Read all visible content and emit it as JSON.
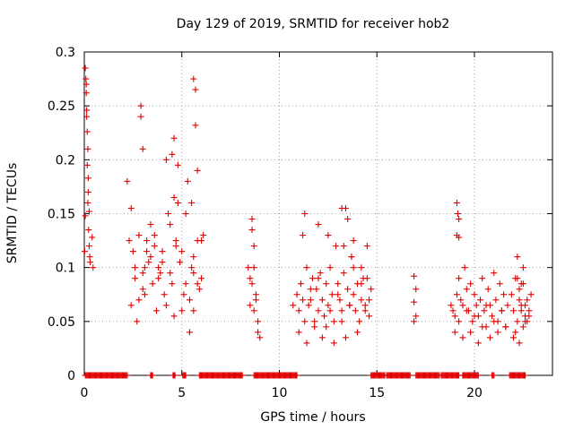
{
  "chart_data": {
    "type": "scatter",
    "title": "Day 129 of 2019, SRMTID for receiver hob2",
    "xlabel": "GPS time / hours",
    "ylabel": "SRMTID / TECUs",
    "xlim": [
      0,
      24
    ],
    "ylim": [
      0,
      0.3
    ],
    "xticks": [
      0,
      5,
      10,
      15,
      20
    ],
    "xtick_labels": [
      "0",
      "5",
      "10",
      "15",
      "20"
    ],
    "yticks": [
      0,
      0.05,
      0.1,
      0.15,
      0.2,
      0.25,
      0.3
    ],
    "ytick_labels": [
      "0",
      "0.05",
      "0.1",
      "0.15",
      "0.2",
      "0.25",
      "0.3"
    ],
    "grid": true,
    "marker": "+",
    "color": "#e00000",
    "series": [
      {
        "name": "hob2",
        "x": [
          0.02,
          0.05,
          0.08,
          0.1,
          0.12,
          0.15,
          0.18,
          0.2,
          0.22,
          0.25,
          0.28,
          0.3,
          0.05,
          0.1,
          0.15,
          0.2,
          0.25,
          0.12,
          0.18,
          0.4,
          0.45,
          2.2,
          2.3,
          2.4,
          2.5,
          2.6,
          2.7,
          2.8,
          2.9,
          3.0,
          3.1,
          3.2,
          3.3,
          3.4,
          3.5,
          3.6,
          3.7,
          3.8,
          3.9,
          4.0,
          4.1,
          4.2,
          4.3,
          4.4,
          4.5,
          4.6,
          4.7,
          4.8,
          4.9,
          5.0,
          5.1,
          5.2,
          5.3,
          5.4,
          5.5,
          5.6,
          5.7,
          5.8,
          5.9,
          6.0,
          6.1,
          2.4,
          2.6,
          2.8,
          3.0,
          3.2,
          3.4,
          3.6,
          3.8,
          4.0,
          4.2,
          4.4,
          4.6,
          4.8,
          5.0,
          5.2,
          5.4,
          5.6,
          5.8,
          6.0,
          2.9,
          3.0,
          3.1,
          4.5,
          4.6,
          4.7,
          5.6,
          5.7,
          5.8,
          5.5,
          5.6,
          8.4,
          8.5,
          8.6,
          8.7,
          8.8,
          8.9,
          8.5,
          8.6,
          8.7,
          8.6,
          8.7,
          8.8,
          8.9,
          9.0,
          10.7,
          10.9,
          11.0,
          11.1,
          11.2,
          11.3,
          11.4,
          11.5,
          11.6,
          11.7,
          11.8,
          11.9,
          12.0,
          12.1,
          12.2,
          12.3,
          12.4,
          12.5,
          12.6,
          12.7,
          12.8,
          12.9,
          13.0,
          13.1,
          13.2,
          13.3,
          13.4,
          13.5,
          13.6,
          13.7,
          13.8,
          13.9,
          14.0,
          14.1,
          14.2,
          14.3,
          14.4,
          14.5,
          14.6,
          14.7,
          11.0,
          11.2,
          11.4,
          11.6,
          11.8,
          12.0,
          12.2,
          12.4,
          12.6,
          12.8,
          13.0,
          13.2,
          13.4,
          13.6,
          13.8,
          14.0,
          14.2,
          14.4,
          14.6,
          11.3,
          12.0,
          12.5,
          13.2,
          13.3,
          13.5,
          13.7,
          13.8,
          14.2,
          14.5,
          16.9,
          17.0,
          16.9,
          17.0,
          16.9,
          18.8,
          18.9,
          19.0,
          19.1,
          19.2,
          19.3,
          19.4,
          19.5,
          19.6,
          19.7,
          19.8,
          19.9,
          20.0,
          20.1,
          20.2,
          20.3,
          20.4,
          20.5,
          20.6,
          20.7,
          20.8,
          20.9,
          21.0,
          21.1,
          21.2,
          21.3,
          21.4,
          21.5,
          21.6,
          21.7,
          19.0,
          19.2,
          19.4,
          19.6,
          19.8,
          20.0,
          20.2,
          20.4,
          20.6,
          20.8,
          21.0,
          21.2,
          21.4,
          21.6,
          19.1,
          19.15,
          19.2,
          19.1,
          19.2,
          21.9,
          22.0,
          22.1,
          22.2,
          22.3,
          22.4,
          22.5,
          22.6,
          22.7,
          22.8,
          22.9,
          22.0,
          22.1,
          22.2,
          22.3,
          22.4,
          22.5,
          22.6,
          22.7,
          22.8,
          22.2,
          22.3,
          22.4,
          22.5,
          22.6
        ],
        "y": [
          0.115,
          0.148,
          0.275,
          0.27,
          0.24,
          0.195,
          0.21,
          0.17,
          0.135,
          0.12,
          0.11,
          0.105,
          0.285,
          0.262,
          0.226,
          0.183,
          0.152,
          0.246,
          0.16,
          0.128,
          0.1,
          0.18,
          0.125,
          0.065,
          0.115,
          0.09,
          0.05,
          0.13,
          0.25,
          0.095,
          0.075,
          0.115,
          0.105,
          0.14,
          0.085,
          0.12,
          0.06,
          0.1,
          0.095,
          0.115,
          0.075,
          0.2,
          0.15,
          0.095,
          0.085,
          0.22,
          0.125,
          0.195,
          0.105,
          0.06,
          0.075,
          0.15,
          0.18,
          0.04,
          0.1,
          0.095,
          0.265,
          0.125,
          0.08,
          0.09,
          0.13,
          0.155,
          0.1,
          0.07,
          0.08,
          0.125,
          0.11,
          0.13,
          0.09,
          0.105,
          0.065,
          0.14,
          0.055,
          0.16,
          0.115,
          0.085,
          0.07,
          0.11,
          0.085,
          0.125,
          0.24,
          0.21,
          0.1,
          0.205,
          0.165,
          0.12,
          0.275,
          0.232,
          0.19,
          0.16,
          0.06,
          0.1,
          0.09,
          0.145,
          0.12,
          0.075,
          0.05,
          0.065,
          0.085,
          0.1,
          0.135,
          0.06,
          0.07,
          0.04,
          0.035,
          0.065,
          0.075,
          0.06,
          0.085,
          0.13,
          0.05,
          0.1,
          0.065,
          0.07,
          0.09,
          0.045,
          0.08,
          0.06,
          0.095,
          0.07,
          0.055,
          0.085,
          0.065,
          0.1,
          0.075,
          0.05,
          0.12,
          0.085,
          0.07,
          0.06,
          0.095,
          0.155,
          0.08,
          0.065,
          0.11,
          0.075,
          0.06,
          0.085,
          0.05,
          0.07,
          0.09,
          0.065,
          0.12,
          0.055,
          0.08,
          0.04,
          0.07,
          0.03,
          0.08,
          0.05,
          0.09,
          0.035,
          0.045,
          0.06,
          0.03,
          0.075,
          0.05,
          0.035,
          0.065,
          0.1,
          0.04,
          0.085,
          0.06,
          0.07,
          0.15,
          0.14,
          0.13,
          0.155,
          0.12,
          0.145,
          0.11,
          0.125,
          0.1,
          0.09,
          0.092,
          0.08,
          0.068,
          0.055,
          0.05,
          0.065,
          0.06,
          0.055,
          0.075,
          0.09,
          0.07,
          0.065,
          0.1,
          0.08,
          0.06,
          0.085,
          0.05,
          0.075,
          0.065,
          0.055,
          0.07,
          0.09,
          0.06,
          0.045,
          0.08,
          0.065,
          0.055,
          0.095,
          0.07,
          0.05,
          0.085,
          0.06,
          0.075,
          0.045,
          0.065,
          0.04,
          0.05,
          0.035,
          0.06,
          0.04,
          0.055,
          0.03,
          0.045,
          0.065,
          0.035,
          0.05,
          0.04,
          0.06,
          0.045,
          0.16,
          0.15,
          0.145,
          0.13,
          0.128,
          0.075,
          0.06,
          0.09,
          0.05,
          0.08,
          0.065,
          0.1,
          0.055,
          0.07,
          0.06,
          0.075,
          0.035,
          0.04,
          0.11,
          0.03,
          0.085,
          0.045,
          0.065,
          0.05,
          0.055,
          0.09,
          0.07,
          0.06,
          0.085,
          0.05
        ],
        "zero_band_x_ranges": [
          [
            0.05,
            2.2
          ],
          [
            3.4,
            3.5
          ],
          [
            4.55,
            4.65
          ],
          [
            5.05,
            5.2
          ],
          [
            5.9,
            8.1
          ],
          [
            8.7,
            10.9
          ],
          [
            14.7,
            15.4
          ],
          [
            15.5,
            16.7
          ],
          [
            17.0,
            18.2
          ],
          [
            18.3,
            19.2
          ],
          [
            19.4,
            20.2
          ],
          [
            20.9,
            21.0
          ],
          [
            21.8,
            22.6
          ]
        ]
      }
    ]
  }
}
